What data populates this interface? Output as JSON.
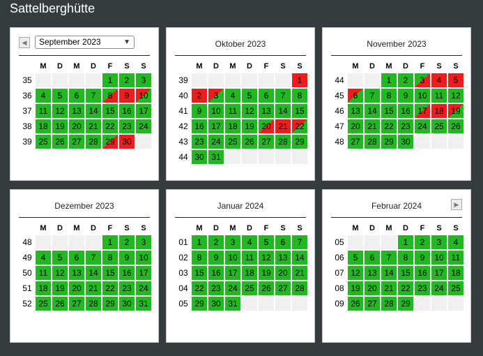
{
  "page_title": "Sattelberghütte",
  "weekdays": [
    "M",
    "D",
    "M",
    "D",
    "F",
    "S",
    "S"
  ],
  "nav": {
    "prev_symbol": "◀",
    "next_symbol": "▶"
  },
  "colors": {
    "free": "#22b822",
    "booked": "#ee1c1c",
    "empty": "#f0f0f0",
    "background": "#353c3f"
  },
  "legend_codes": {
    "g": "free",
    "r": "booked",
    "gr": "free then booked (arrival day)",
    "rg": "booked then free (departure day)",
    "e": "empty"
  },
  "months": [
    {
      "title": "September 2023",
      "select_value": "September 2023",
      "weeks": [
        {
          "wk": "35",
          "days": [
            [
              "",
              ""
            ],
            [
              "",
              ""
            ],
            [
              "",
              ""
            ],
            [
              "",
              ""
            ],
            [
              "1",
              "g"
            ],
            [
              "2",
              "g"
            ],
            [
              "3",
              "g"
            ]
          ]
        },
        {
          "wk": "36",
          "days": [
            [
              "4",
              "g"
            ],
            [
              "5",
              "g"
            ],
            [
              "6",
              "g"
            ],
            [
              "7",
              "g"
            ],
            [
              "8",
              "gr"
            ],
            [
              "9",
              "r"
            ],
            [
              "10",
              "rg"
            ]
          ]
        },
        {
          "wk": "37",
          "days": [
            [
              "11",
              "g"
            ],
            [
              "12",
              "g"
            ],
            [
              "13",
              "g"
            ],
            [
              "14",
              "g"
            ],
            [
              "15",
              "g"
            ],
            [
              "16",
              "g"
            ],
            [
              "17",
              "g"
            ]
          ]
        },
        {
          "wk": "38",
          "days": [
            [
              "18",
              "g"
            ],
            [
              "19",
              "g"
            ],
            [
              "20",
              "g"
            ],
            [
              "21",
              "g"
            ],
            [
              "22",
              "g"
            ],
            [
              "23",
              "g"
            ],
            [
              "24",
              "g"
            ]
          ]
        },
        {
          "wk": "39",
          "days": [
            [
              "25",
              "g"
            ],
            [
              "26",
              "g"
            ],
            [
              "27",
              "g"
            ],
            [
              "28",
              "g"
            ],
            [
              "29",
              "gr"
            ],
            [
              "30",
              "r"
            ],
            [
              "",
              ""
            ]
          ]
        }
      ]
    },
    {
      "title": "Oktober 2023",
      "weeks": [
        {
          "wk": "39",
          "days": [
            [
              "",
              ""
            ],
            [
              "",
              ""
            ],
            [
              "",
              ""
            ],
            [
              "",
              ""
            ],
            [
              "",
              ""
            ],
            [
              "",
              ""
            ],
            [
              "1",
              "r"
            ]
          ]
        },
        {
          "wk": "40",
          "days": [
            [
              "2",
              "r"
            ],
            [
              "3",
              "rg"
            ],
            [
              "4",
              "g"
            ],
            [
              "5",
              "g"
            ],
            [
              "6",
              "g"
            ],
            [
              "7",
              "g"
            ],
            [
              "8",
              "g"
            ]
          ]
        },
        {
          "wk": "41",
          "days": [
            [
              "9",
              "g"
            ],
            [
              "10",
              "g"
            ],
            [
              "11",
              "g"
            ],
            [
              "12",
              "g"
            ],
            [
              "13",
              "g"
            ],
            [
              "14",
              "g"
            ],
            [
              "15",
              "g"
            ]
          ]
        },
        {
          "wk": "42",
          "days": [
            [
              "16",
              "g"
            ],
            [
              "17",
              "g"
            ],
            [
              "18",
              "g"
            ],
            [
              "19",
              "g"
            ],
            [
              "20",
              "gr"
            ],
            [
              "21",
              "r"
            ],
            [
              "22",
              "rg"
            ]
          ]
        },
        {
          "wk": "43",
          "days": [
            [
              "23",
              "g"
            ],
            [
              "24",
              "g"
            ],
            [
              "25",
              "g"
            ],
            [
              "26",
              "g"
            ],
            [
              "27",
              "g"
            ],
            [
              "28",
              "g"
            ],
            [
              "29",
              "g"
            ]
          ]
        },
        {
          "wk": "44",
          "days": [
            [
              "30",
              "g"
            ],
            [
              "31",
              "g"
            ],
            [
              "",
              ""
            ],
            [
              "",
              ""
            ],
            [
              "",
              ""
            ],
            [
              "",
              ""
            ],
            [
              "",
              ""
            ]
          ]
        }
      ]
    },
    {
      "title": "November 2023",
      "weeks": [
        {
          "wk": "44",
          "days": [
            [
              "",
              ""
            ],
            [
              "",
              ""
            ],
            [
              "1",
              "g"
            ],
            [
              "2",
              "g"
            ],
            [
              "3",
              "gr"
            ],
            [
              "4",
              "r"
            ],
            [
              "5",
              "r"
            ]
          ]
        },
        {
          "wk": "45",
          "days": [
            [
              "6",
              "rg"
            ],
            [
              "7",
              "g"
            ],
            [
              "8",
              "g"
            ],
            [
              "9",
              "g"
            ],
            [
              "10",
              "g"
            ],
            [
              "11",
              "g"
            ],
            [
              "12",
              "g"
            ]
          ]
        },
        {
          "wk": "46",
          "days": [
            [
              "13",
              "g"
            ],
            [
              "14",
              "g"
            ],
            [
              "15",
              "g"
            ],
            [
              "16",
              "g"
            ],
            [
              "17",
              "gr"
            ],
            [
              "18",
              "r"
            ],
            [
              "19",
              "rg"
            ]
          ]
        },
        {
          "wk": "47",
          "days": [
            [
              "20",
              "g"
            ],
            [
              "21",
              "g"
            ],
            [
              "22",
              "g"
            ],
            [
              "23",
              "g"
            ],
            [
              "24",
              "g"
            ],
            [
              "25",
              "g"
            ],
            [
              "26",
              "g"
            ]
          ]
        },
        {
          "wk": "48",
          "days": [
            [
              "27",
              "g"
            ],
            [
              "28",
              "g"
            ],
            [
              "29",
              "g"
            ],
            [
              "30",
              "g"
            ],
            [
              "",
              ""
            ],
            [
              "",
              ""
            ],
            [
              "",
              ""
            ]
          ]
        }
      ]
    },
    {
      "title": "Dezember 2023",
      "weeks": [
        {
          "wk": "48",
          "days": [
            [
              "",
              ""
            ],
            [
              "",
              ""
            ],
            [
              "",
              ""
            ],
            [
              "",
              ""
            ],
            [
              "1",
              "g"
            ],
            [
              "2",
              "g"
            ],
            [
              "3",
              "g"
            ]
          ]
        },
        {
          "wk": "49",
          "days": [
            [
              "4",
              "g"
            ],
            [
              "5",
              "g"
            ],
            [
              "6",
              "g"
            ],
            [
              "7",
              "g"
            ],
            [
              "8",
              "g"
            ],
            [
              "9",
              "g"
            ],
            [
              "10",
              "g"
            ]
          ]
        },
        {
          "wk": "50",
          "days": [
            [
              "11",
              "g"
            ],
            [
              "12",
              "g"
            ],
            [
              "13",
              "g"
            ],
            [
              "14",
              "g"
            ],
            [
              "15",
              "g"
            ],
            [
              "16",
              "g"
            ],
            [
              "17",
              "g"
            ]
          ]
        },
        {
          "wk": "51",
          "days": [
            [
              "18",
              "g"
            ],
            [
              "19",
              "g"
            ],
            [
              "20",
              "g"
            ],
            [
              "21",
              "g"
            ],
            [
              "22",
              "g"
            ],
            [
              "23",
              "g"
            ],
            [
              "24",
              "g"
            ]
          ]
        },
        {
          "wk": "52",
          "days": [
            [
              "25",
              "g"
            ],
            [
              "26",
              "g"
            ],
            [
              "27",
              "g"
            ],
            [
              "28",
              "g"
            ],
            [
              "29",
              "g"
            ],
            [
              "30",
              "g"
            ],
            [
              "31",
              "g"
            ]
          ]
        }
      ]
    },
    {
      "title": "Januar 2024",
      "weeks": [
        {
          "wk": "01",
          "days": [
            [
              "1",
              "g"
            ],
            [
              "2",
              "g"
            ],
            [
              "3",
              "g"
            ],
            [
              "4",
              "g"
            ],
            [
              "5",
              "g"
            ],
            [
              "6",
              "g"
            ],
            [
              "7",
              "g"
            ]
          ]
        },
        {
          "wk": "02",
          "days": [
            [
              "8",
              "g"
            ],
            [
              "9",
              "g"
            ],
            [
              "10",
              "g"
            ],
            [
              "11",
              "g"
            ],
            [
              "12",
              "g"
            ],
            [
              "13",
              "g"
            ],
            [
              "14",
              "g"
            ]
          ]
        },
        {
          "wk": "03",
          "days": [
            [
              "15",
              "g"
            ],
            [
              "16",
              "g"
            ],
            [
              "17",
              "g"
            ],
            [
              "18",
              "g"
            ],
            [
              "19",
              "g"
            ],
            [
              "20",
              "g"
            ],
            [
              "21",
              "g"
            ]
          ]
        },
        {
          "wk": "04",
          "days": [
            [
              "22",
              "g"
            ],
            [
              "23",
              "g"
            ],
            [
              "24",
              "g"
            ],
            [
              "25",
              "g"
            ],
            [
              "26",
              "g"
            ],
            [
              "27",
              "g"
            ],
            [
              "28",
              "g"
            ]
          ]
        },
        {
          "wk": "05",
          "days": [
            [
              "29",
              "g"
            ],
            [
              "30",
              "g"
            ],
            [
              "31",
              "g"
            ],
            [
              "",
              ""
            ],
            [
              "",
              ""
            ],
            [
              "",
              ""
            ],
            [
              "",
              ""
            ]
          ]
        }
      ]
    },
    {
      "title": "Februar 2024",
      "weeks": [
        {
          "wk": "05",
          "days": [
            [
              "",
              ""
            ],
            [
              "",
              ""
            ],
            [
              "",
              ""
            ],
            [
              "1",
              "g"
            ],
            [
              "2",
              "g"
            ],
            [
              "3",
              "g"
            ],
            [
              "4",
              "g"
            ]
          ]
        },
        {
          "wk": "06",
          "days": [
            [
              "5",
              "g"
            ],
            [
              "6",
              "g"
            ],
            [
              "7",
              "g"
            ],
            [
              "8",
              "g"
            ],
            [
              "9",
              "g"
            ],
            [
              "10",
              "g"
            ],
            [
              "11",
              "g"
            ]
          ]
        },
        {
          "wk": "07",
          "days": [
            [
              "12",
              "g"
            ],
            [
              "13",
              "g"
            ],
            [
              "14",
              "g"
            ],
            [
              "15",
              "g"
            ],
            [
              "16",
              "g"
            ],
            [
              "17",
              "g"
            ],
            [
              "18",
              "g"
            ]
          ]
        },
        {
          "wk": "08",
          "days": [
            [
              "19",
              "g"
            ],
            [
              "20",
              "g"
            ],
            [
              "21",
              "g"
            ],
            [
              "22",
              "g"
            ],
            [
              "23",
              "g"
            ],
            [
              "24",
              "g"
            ],
            [
              "25",
              "g"
            ]
          ]
        },
        {
          "wk": "09",
          "days": [
            [
              "26",
              "g"
            ],
            [
              "27",
              "g"
            ],
            [
              "28",
              "g"
            ],
            [
              "29",
              "g"
            ],
            [
              "",
              ""
            ],
            [
              "",
              ""
            ],
            [
              "",
              ""
            ]
          ]
        }
      ]
    }
  ]
}
